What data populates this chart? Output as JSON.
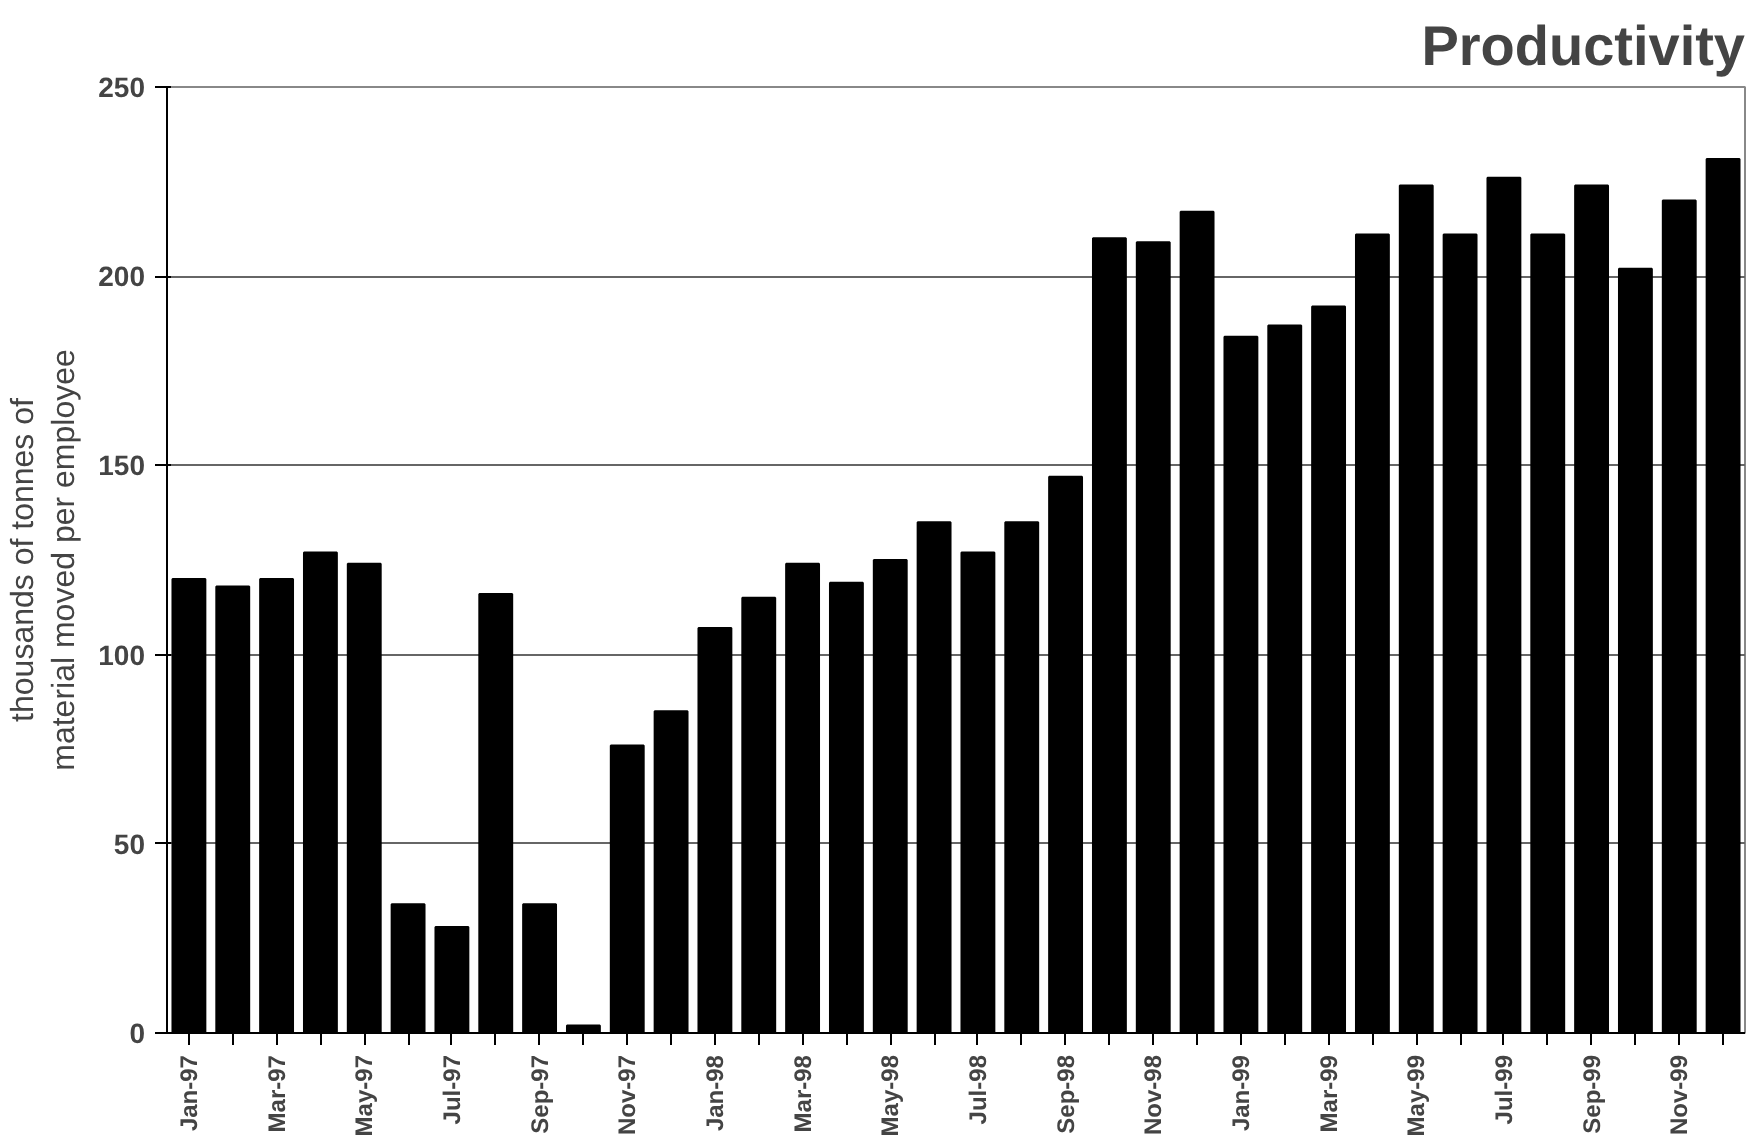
{
  "chart_data": {
    "type": "bar",
    "title": "Productivity",
    "ylabel": "thousands of tonnes of\nmaterial moved per employee",
    "categories": [
      "Jan-97",
      null,
      "Mar-97",
      null,
      "May-97",
      null,
      "Jul-97",
      null,
      "Sep-97",
      null,
      "Nov-97",
      null,
      "Jan-98",
      null,
      "Mar-98",
      null,
      "May-98",
      null,
      "Jul-98",
      null,
      "Sep-98",
      null,
      "Nov-98",
      null,
      "Jan-99",
      null,
      "Mar-99",
      null,
      "May-99",
      null,
      "Jul-99",
      null,
      "Sep-99",
      null,
      "Nov-99",
      null
    ],
    "values": [
      120,
      118,
      120,
      127,
      124,
      34,
      28,
      116,
      34,
      2,
      76,
      85,
      107,
      115,
      124,
      119,
      125,
      135,
      127,
      135,
      147,
      210,
      209,
      217,
      184,
      187,
      192,
      211,
      224,
      211,
      226,
      211,
      224,
      202,
      220,
      231
    ],
    "color": "#000000",
    "ylim": [
      0,
      250
    ],
    "yticks": [
      0,
      50,
      100,
      150,
      200,
      250
    ],
    "grid": "y"
  }
}
